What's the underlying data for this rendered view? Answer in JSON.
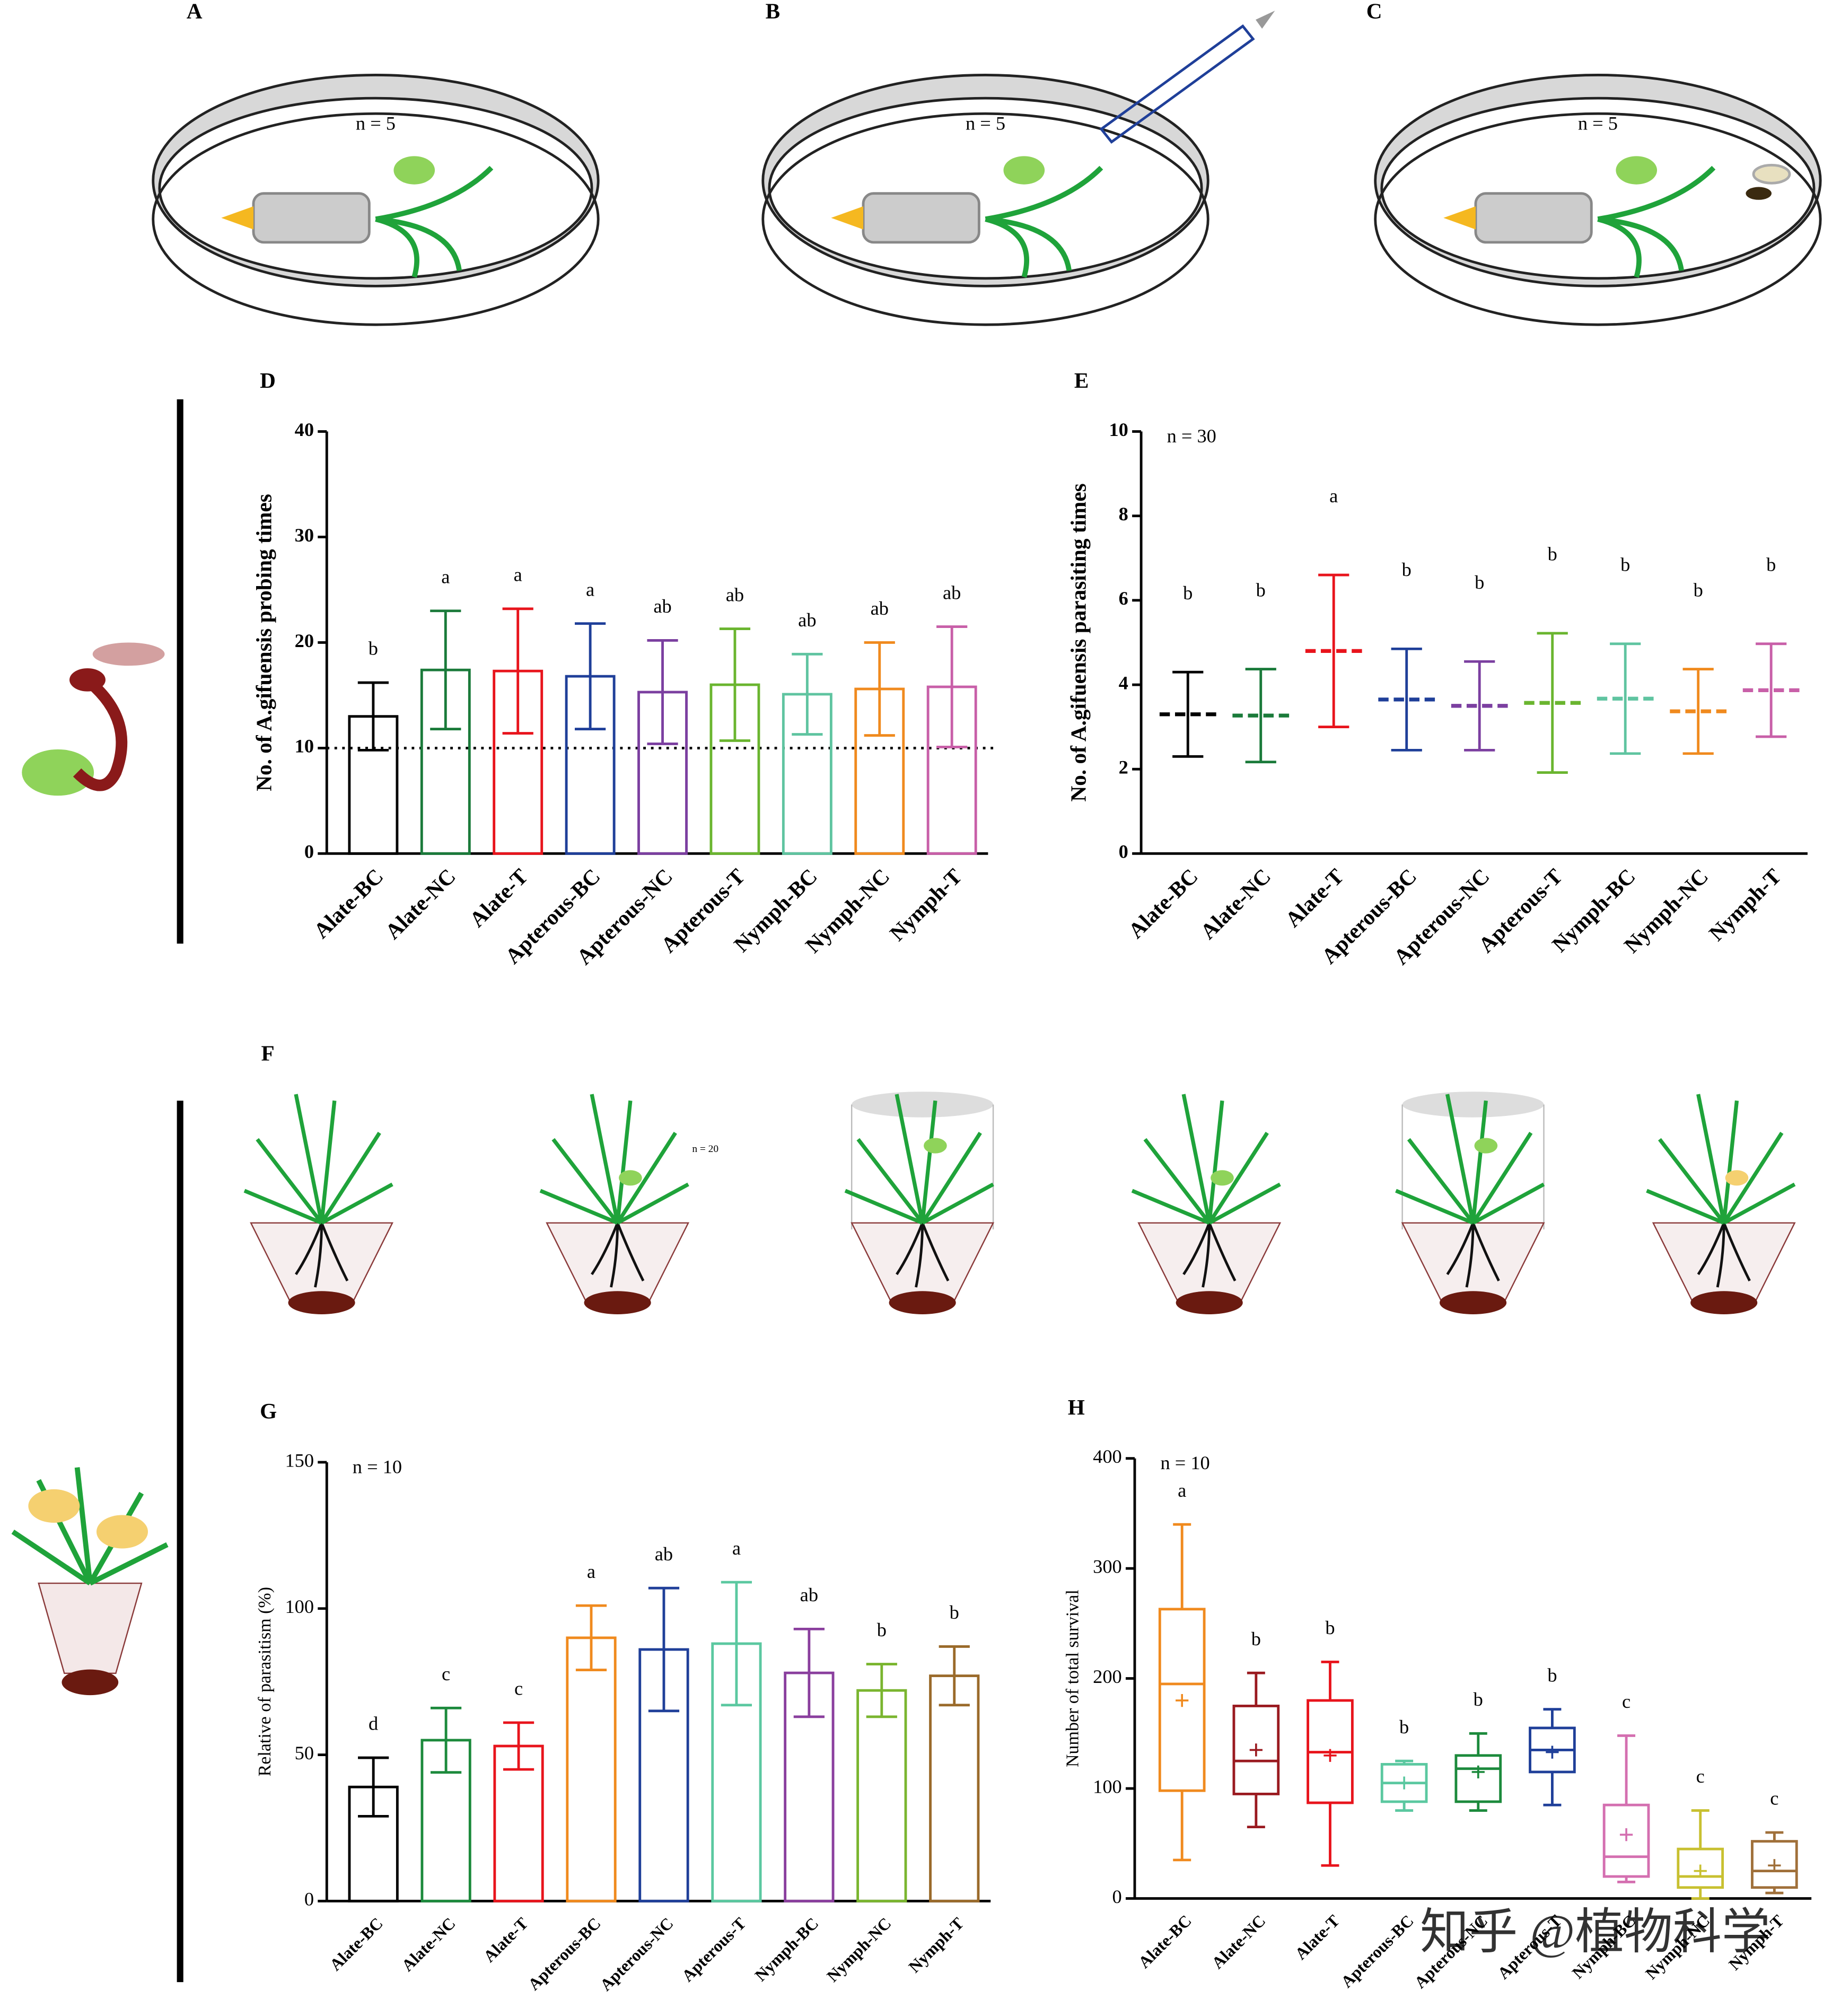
{
  "panel_labels": [
    "A",
    "B",
    "C",
    "F"
  ],
  "top_note": "n = 5",
  "f_note": "n = 20",
  "watermark": "知乎 @植物科学",
  "chart_data": [
    {
      "label": "D",
      "type": "bar",
      "ylabel": "No. of A.gifuensis probing times",
      "categories": [
        "Alate-BC",
        "Alate-NC",
        "Alate-T",
        "Apterous-BC",
        "Apterous-NC",
        "Apterous-T",
        "Nymph-BC",
        "Nymph-NC",
        "Nymph-T"
      ],
      "values": [
        13,
        17.4,
        17.3,
        16.8,
        15.3,
        16,
        15.1,
        15.6,
        15.8
      ],
      "errors": [
        3.2,
        5.6,
        5.9,
        5,
        4.9,
        5.3,
        3.8,
        4.4,
        5.7
      ],
      "letters": [
        "b",
        "a",
        "a",
        "a",
        "ab",
        "ab",
        "ab",
        "ab",
        "ab"
      ],
      "colors": [
        "#000000",
        "#1a7a3a",
        "#e8141c",
        "#1f3f99",
        "#7b3fa0",
        "#6ab52f",
        "#5fc4a0",
        "#f08a1e",
        "#c85fa8"
      ],
      "reference_line": 10,
      "ylim": [
        0,
        40
      ],
      "yticks": [
        0,
        10,
        20,
        30,
        40
      ]
    },
    {
      "label": "E",
      "type": "errorbar",
      "ylabel": "No. of A.gifuensis parasiting times",
      "note": "n = 30",
      "categories": [
        "Alate-BC",
        "Alate-NC",
        "Alate-T",
        "Apterous-BC",
        "Apterous-NC",
        "Apterous-T",
        "Nymph-BC",
        "Nymph-NC",
        "Nymph-T"
      ],
      "values": [
        3.3,
        3.27,
        4.8,
        3.65,
        3.5,
        3.57,
        3.67,
        3.37,
        3.87
      ],
      "errors": [
        1,
        1.1,
        1.8,
        1.2,
        1.05,
        1.65,
        1.3,
        1,
        1.1
      ],
      "letters": [
        "b",
        "b",
        "a",
        "b",
        "b",
        "b",
        "b",
        "b",
        "b"
      ],
      "colors": [
        "#000000",
        "#1a7a3a",
        "#e8141c",
        "#1f3f99",
        "#7b3fa0",
        "#6ab52f",
        "#5fc4a0",
        "#f08a1e",
        "#c85fa8"
      ],
      "ylim": [
        0,
        10
      ],
      "yticks": [
        0,
        2,
        4,
        6,
        8,
        10
      ]
    },
    {
      "label": "G",
      "type": "bar",
      "ylabel": "Relative of parasitism (%)",
      "note": "n = 10",
      "categories": [
        "Alate-BC",
        "Alate-NC",
        "Alate-T",
        "Apterous-BC",
        "Apterous-NC",
        "Apterous-T",
        "Nymph-BC",
        "Nymph-NC",
        "Nymph-T"
      ],
      "values": [
        39,
        55,
        53,
        90,
        86,
        88,
        78,
        72,
        77
      ],
      "errors": [
        10,
        11,
        8,
        11,
        21,
        21,
        15,
        9,
        10
      ],
      "letters": [
        "d",
        "c",
        "c",
        "a",
        "ab",
        "a",
        "ab",
        "b",
        "b"
      ],
      "colors": [
        "#000000",
        "#1c8a3c",
        "#e8141c",
        "#f08a1e",
        "#1f3f99",
        "#5bc8a0",
        "#8a3f9e",
        "#7ab52f",
        "#9a6a2a"
      ],
      "ylim": [
        0,
        150
      ],
      "yticks": [
        0,
        50,
        100,
        150
      ]
    },
    {
      "label": "H",
      "type": "box",
      "ylabel": "Number of total survival",
      "note": "n = 10",
      "categories": [
        "Alate-BC",
        "Alate-NC",
        "Alate-T",
        "Apterous-BC",
        "Apterous-NC",
        "Apterous-T",
        "Nymph-BC",
        "Nymph-NC",
        "Nymph-T"
      ],
      "min": [
        35,
        65,
        30,
        80,
        80,
        85,
        15,
        0,
        5
      ],
      "q1": [
        98,
        95,
        87,
        88,
        88,
        115,
        20,
        10,
        10
      ],
      "median": [
        195,
        125,
        133,
        105,
        118,
        135,
        38,
        20,
        25
      ],
      "q3": [
        263,
        175,
        180,
        122,
        130,
        155,
        85,
        45,
        52
      ],
      "max": [
        340,
        205,
        215,
        125,
        150,
        172,
        148,
        80,
        60
      ],
      "mean": [
        180,
        135,
        130,
        105,
        115,
        133,
        58,
        25,
        30
      ],
      "letters": [
        "a",
        "b",
        "b",
        "b",
        "b",
        "b",
        "c",
        "c",
        "c"
      ],
      "colors": [
        "#f08a1e",
        "#9a1a20",
        "#e8141c",
        "#5bc8a0",
        "#1c8a3c",
        "#1f3f99",
        "#d46fb0",
        "#c8c030",
        "#a0703a"
      ],
      "ylim": [
        0,
        400
      ],
      "yticks": [
        0,
        100,
        200,
        300,
        400
      ]
    }
  ]
}
